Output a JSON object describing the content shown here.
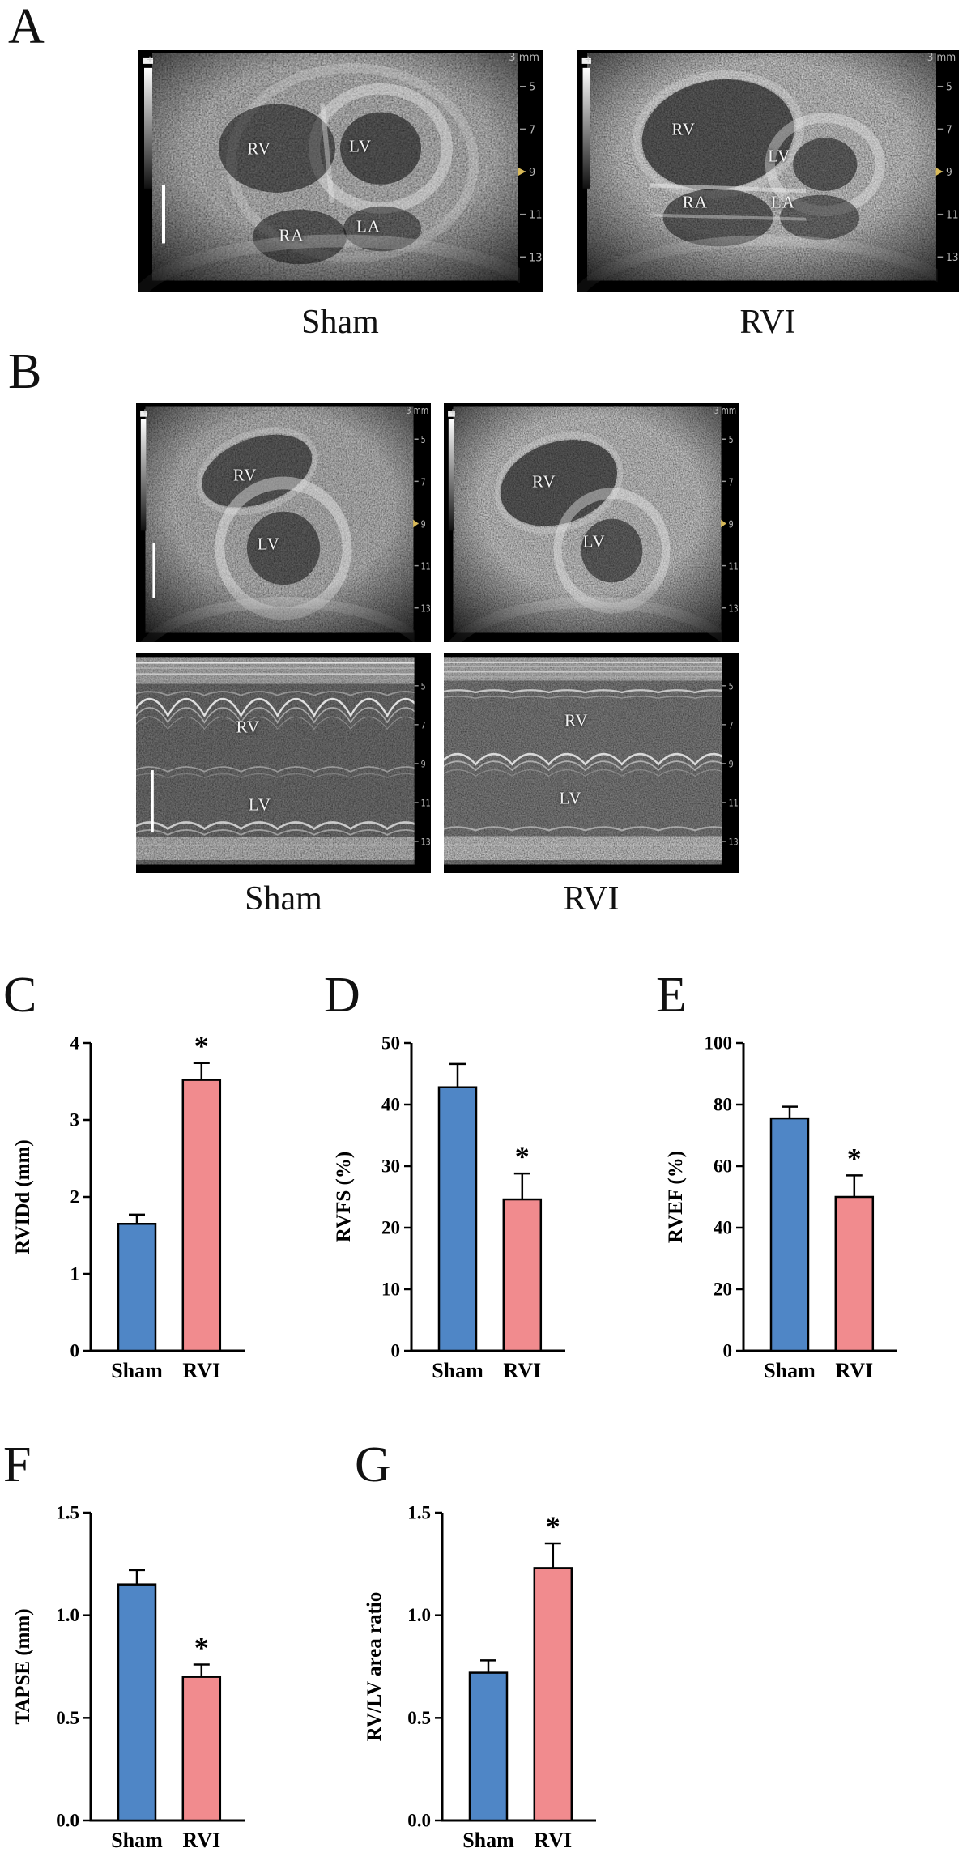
{
  "ultrasound": {
    "ruler_numbers": [
      "5",
      "7",
      "9",
      "11",
      "13"
    ],
    "depth_label": "3 mm",
    "orientation_marker": "+"
  },
  "panels": {
    "A": {
      "letter": "A",
      "captions": [
        "Sham",
        "RVI"
      ],
      "images": [
        {
          "labels": {
            "rv": "RV",
            "lv": "LV",
            "ra": "RA",
            "la": "LA"
          }
        },
        {
          "labels": {
            "rv": "RV",
            "lv": "LV",
            "ra": "RA",
            "la": "LA"
          }
        }
      ]
    },
    "B": {
      "letter": "B",
      "captions": [
        "Sham",
        "RVI"
      ],
      "bmode": [
        {
          "labels": {
            "rv": "RV",
            "lv": "LV"
          }
        },
        {
          "labels": {
            "rv": "RV",
            "lv": "LV"
          }
        }
      ],
      "mmode": [
        {
          "labels": {
            "rv": "RV",
            "lv": "LV"
          }
        },
        {
          "labels": {
            "rv": "RV",
            "lv": "LV"
          }
        }
      ]
    },
    "C": {
      "letter": "C"
    },
    "D": {
      "letter": "D"
    },
    "E": {
      "letter": "E"
    },
    "F": {
      "letter": "F"
    },
    "G": {
      "letter": "G"
    }
  },
  "chart_data": [
    {
      "panel": "C",
      "type": "bar",
      "ylabel": "RVIDd (mm)",
      "categories": [
        "Sham",
        "RVI"
      ],
      "values": [
        1.65,
        3.52
      ],
      "errors": [
        0.12,
        0.22
      ],
      "ylim": [
        0,
        4
      ],
      "yticks": [
        0,
        1,
        2,
        3,
        4
      ],
      "ytick_labels": [
        "0",
        "1",
        "2",
        "3",
        "4"
      ],
      "significance": [
        "",
        "*"
      ],
      "bar_colors": [
        "#4f86c6",
        "#f18b8e"
      ]
    },
    {
      "panel": "D",
      "type": "bar",
      "ylabel": "RVFS (%)",
      "categories": [
        "Sham",
        "RVI"
      ],
      "values": [
        42.8,
        24.6
      ],
      "errors": [
        3.8,
        4.2
      ],
      "ylim": [
        0,
        50
      ],
      "yticks": [
        0,
        10,
        20,
        30,
        40,
        50
      ],
      "ytick_labels": [
        "0",
        "10",
        "20",
        "30",
        "40",
        "50"
      ],
      "significance": [
        "",
        "*"
      ],
      "bar_colors": [
        "#4f86c6",
        "#f18b8e"
      ]
    },
    {
      "panel": "E",
      "type": "bar",
      "ylabel": "RVEF (%)",
      "categories": [
        "Sham",
        "RVI"
      ],
      "values": [
        75.5,
        50.0
      ],
      "errors": [
        3.8,
        7.0
      ],
      "ylim": [
        0,
        100
      ],
      "yticks": [
        0,
        20,
        40,
        60,
        80,
        100
      ],
      "ytick_labels": [
        "0",
        "20",
        "40",
        "60",
        "80",
        "100"
      ],
      "significance": [
        "",
        "*"
      ],
      "bar_colors": [
        "#4f86c6",
        "#f18b8e"
      ]
    },
    {
      "panel": "F",
      "type": "bar",
      "ylabel": "TAPSE (mm)",
      "categories": [
        "Sham",
        "RVI"
      ],
      "values": [
        1.15,
        0.7
      ],
      "errors": [
        0.07,
        0.06
      ],
      "ylim": [
        0,
        1.5
      ],
      "yticks": [
        0,
        0.5,
        1.0,
        1.5
      ],
      "ytick_labels": [
        "0.0",
        "0.5",
        "1.0",
        "1.5"
      ],
      "significance": [
        "",
        "*"
      ],
      "bar_colors": [
        "#4f86c6",
        "#f18b8e"
      ]
    },
    {
      "panel": "G",
      "type": "bar",
      "ylabel": "RV/LV area ratio",
      "categories": [
        "Sham",
        "RVI"
      ],
      "values": [
        0.72,
        1.23
      ],
      "errors": [
        0.06,
        0.12
      ],
      "ylim": [
        0,
        1.5
      ],
      "yticks": [
        0,
        0.5,
        1.0,
        1.5
      ],
      "ytick_labels": [
        "0.0",
        "0.5",
        "1.0",
        "1.5"
      ],
      "significance": [
        "",
        "*"
      ],
      "bar_colors": [
        "#4f86c6",
        "#f18b8e"
      ]
    }
  ]
}
